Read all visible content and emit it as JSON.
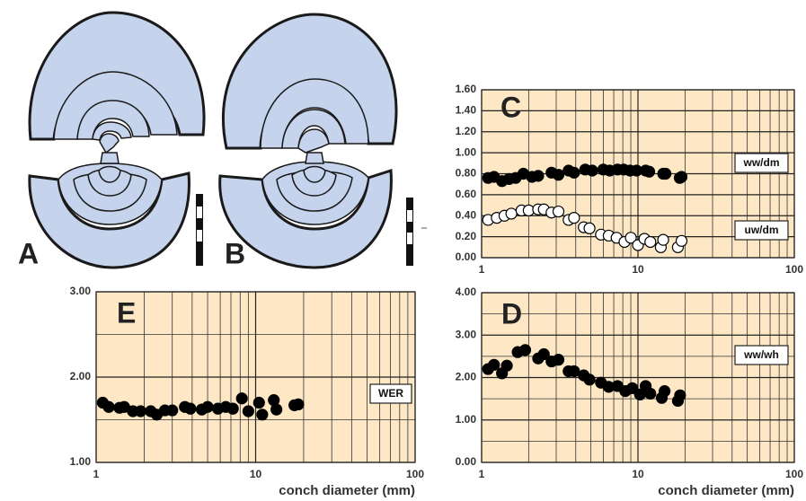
{
  "drawing_labels": [
    "A",
    "B"
  ],
  "chart_data": [
    {
      "type": "scatter",
      "title": "C",
      "xscale": "log",
      "background": "#fde7c4",
      "xlim": [
        1,
        100
      ],
      "xticks": [
        1,
        10,
        100
      ],
      "xminor": [
        2,
        3,
        4,
        5,
        6,
        7,
        8,
        9,
        20,
        30,
        40,
        50,
        60,
        70,
        80,
        90
      ],
      "ylim": [
        0,
        1.6
      ],
      "yticks": [
        {
          "value": 0,
          "label": "0.00"
        },
        {
          "value": 0.2,
          "label": "0.20"
        },
        {
          "value": 0.4,
          "label": "0.40"
        },
        {
          "value": 0.6,
          "label": "0.60"
        },
        {
          "value": 0.8,
          "label": "0.80"
        },
        {
          "value": 1.0,
          "label": "1.00"
        },
        {
          "value": 1.2,
          "label": "1.20"
        },
        {
          "value": 1.4,
          "label": "1.40"
        },
        {
          "value": 1.6,
          "label": "1.60"
        }
      ],
      "series": [
        {
          "name": "ww/dm",
          "color": "#000000",
          "x": [
            1.1,
            1.2,
            1.35,
            1.5,
            1.65,
            1.85,
            2.1,
            2.3,
            2.8,
            3.1,
            3.6,
            3.9,
            4.6,
            5.1,
            6.0,
            6.6,
            7.4,
            8.1,
            8.9,
            9.8,
            11.2,
            11.8,
            14.5,
            15.0,
            18.5,
            19.0
          ],
          "values": [
            0.76,
            0.77,
            0.73,
            0.75,
            0.76,
            0.8,
            0.77,
            0.78,
            0.81,
            0.79,
            0.83,
            0.81,
            0.84,
            0.83,
            0.84,
            0.83,
            0.84,
            0.84,
            0.83,
            0.83,
            0.83,
            0.82,
            0.8,
            0.8,
            0.76,
            0.77
          ]
        },
        {
          "name": "uw/dm",
          "color": "#ffffff",
          "x": [
            1.1,
            1.25,
            1.4,
            1.55,
            1.8,
            2.0,
            2.3,
            2.5,
            2.8,
            3.1,
            3.6,
            3.9,
            4.5,
            4.9,
            5.8,
            6.5,
            7.3,
            8.2,
            9.0,
            10.0,
            11.0,
            12.0,
            14.0,
            14.5,
            18.0,
            19.0
          ],
          "values": [
            0.36,
            0.38,
            0.4,
            0.42,
            0.45,
            0.45,
            0.46,
            0.46,
            0.43,
            0.44,
            0.36,
            0.38,
            0.29,
            0.28,
            0.22,
            0.21,
            0.19,
            0.15,
            0.19,
            0.12,
            0.18,
            0.15,
            0.1,
            0.17,
            0.1,
            0.16
          ]
        }
      ]
    },
    {
      "type": "scatter",
      "title": "E",
      "xscale": "log",
      "background": "#fde7c4",
      "xlabel": "conch diameter (mm)",
      "xlim": [
        1,
        100
      ],
      "xticks": [
        1,
        10,
        100
      ],
      "xminor": [
        2,
        3,
        4,
        5,
        6,
        7,
        8,
        9,
        20,
        30,
        40,
        50,
        60,
        70,
        80,
        90
      ],
      "ylim": [
        1,
        3
      ],
      "yticks": [
        {
          "value": 1,
          "label": "1.00"
        },
        {
          "value": 2,
          "label": "2.00"
        },
        {
          "value": 3,
          "label": "3.00"
        }
      ],
      "yminor": [
        1.5,
        2.5
      ],
      "series": [
        {
          "name": "WER",
          "color": "#000000",
          "x": [
            1.1,
            1.2,
            1.4,
            1.5,
            1.7,
            1.9,
            2.2,
            2.4,
            2.7,
            3.0,
            3.6,
            3.9,
            4.6,
            5.0,
            5.8,
            6.5,
            7.2,
            8.2,
            9.0,
            10.5,
            11.0,
            13.0,
            13.5,
            17.5,
            18.5
          ],
          "values": [
            1.7,
            1.65,
            1.64,
            1.65,
            1.6,
            1.6,
            1.6,
            1.56,
            1.61,
            1.61,
            1.65,
            1.63,
            1.62,
            1.65,
            1.63,
            1.65,
            1.63,
            1.75,
            1.6,
            1.7,
            1.56,
            1.73,
            1.62,
            1.67,
            1.68
          ]
        }
      ]
    },
    {
      "type": "scatter",
      "title": "D",
      "xscale": "log",
      "background": "#fde7c4",
      "xlabel": "conch diameter (mm)",
      "xlim": [
        1,
        100
      ],
      "xticks": [
        1,
        10,
        100
      ],
      "xminor": [
        2,
        3,
        4,
        5,
        6,
        7,
        8,
        9,
        20,
        30,
        40,
        50,
        60,
        70,
        80,
        90
      ],
      "ylim": [
        0,
        4
      ],
      "yticks": [
        {
          "value": 0,
          "label": "0.00"
        },
        {
          "value": 1,
          "label": "1.00"
        },
        {
          "value": 2,
          "label": "2.00"
        },
        {
          "value": 3,
          "label": "3.00"
        },
        {
          "value": 4,
          "label": "4.00"
        }
      ],
      "yminor": [
        0.5,
        1.5,
        2.5,
        3.5
      ],
      "series": [
        {
          "name": "ww/wh",
          "color": "#000000",
          "x": [
            1.1,
            1.2,
            1.35,
            1.45,
            1.7,
            1.9,
            2.3,
            2.5,
            2.8,
            3.1,
            3.6,
            3.9,
            4.5,
            4.9,
            5.8,
            6.5,
            7.4,
            8.3,
            9.2,
            10.3,
            11.2,
            12.0,
            14.2,
            14.8,
            18.0,
            18.6
          ],
          "values": [
            2.2,
            2.3,
            2.1,
            2.28,
            2.6,
            2.65,
            2.45,
            2.55,
            2.38,
            2.42,
            2.15,
            2.15,
            2.05,
            1.95,
            1.88,
            1.78,
            1.8,
            1.68,
            1.75,
            1.6,
            1.8,
            1.62,
            1.52,
            1.68,
            1.45,
            1.58
          ]
        }
      ]
    }
  ]
}
